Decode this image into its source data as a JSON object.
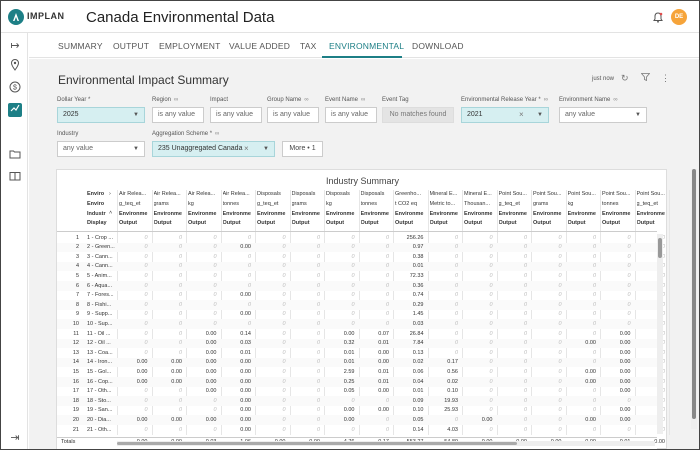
{
  "brand": {
    "name": "IMPLAN"
  },
  "app": {
    "title": "Canada Environmental Data"
  },
  "user": {
    "initials": "DE"
  },
  "tabs": [
    "SUMMARY",
    "OUTPUT",
    "EMPLOYMENT",
    "VALUE ADDED",
    "TAX",
    "ENVIRONMENTAL",
    "DOWNLOAD"
  ],
  "active_tab": "ENVIRONMENTAL",
  "page": {
    "title": "Environmental Impact Summary",
    "updated": "just now"
  },
  "filters": {
    "dollar_year": {
      "label": "Dollar Year *",
      "value": "2025"
    },
    "region": {
      "label": "Region",
      "value": "is any value"
    },
    "impact": {
      "label": "Impact",
      "value": "is any value"
    },
    "group_name": {
      "label": "Group Name",
      "value": "is any value"
    },
    "event_name": {
      "label": "Event Name",
      "value": "is any value"
    },
    "event_tag": {
      "label": "Event Tag",
      "value": "No matches found"
    },
    "release_year": {
      "label": "Environmental Release Year *",
      "value": "2021"
    },
    "env_name": {
      "label": "Environment Name",
      "value": "any value"
    },
    "industry": {
      "label": "Industry",
      "value": "any value"
    },
    "aggregation": {
      "label": "Aggregation Scheme *",
      "value": "235 Unaggregated Canada"
    },
    "more": "More • 1"
  },
  "table": {
    "title": "Industry Summary",
    "left_headers": [
      "Enviro",
      "Enviro",
      "Industr",
      "Display"
    ],
    "columns": [
      {
        "h1": "Air Relea...",
        "h2": "g_teq_et",
        "h3": "Environme",
        "h4": "Output"
      },
      {
        "h1": "Air Relea...",
        "h2": "grams",
        "h3": "Environme",
        "h4": "Output"
      },
      {
        "h1": "Air Relea...",
        "h2": "kg",
        "h3": "Environme",
        "h4": "Output"
      },
      {
        "h1": "Air Relea...",
        "h2": "tonnes",
        "h3": "Environme",
        "h4": "Output"
      },
      {
        "h1": "Disposals",
        "h2": "g_teq_et",
        "h3": "Environme",
        "h4": "Output"
      },
      {
        "h1": "Disposals",
        "h2": "grams",
        "h3": "Environme",
        "h4": "Output"
      },
      {
        "h1": "Disposals",
        "h2": "kg",
        "h3": "Environme",
        "h4": "Output"
      },
      {
        "h1": "Disposals",
        "h2": "tonnes",
        "h3": "Environme",
        "h4": "Output"
      },
      {
        "h1": "Greenho...",
        "h2": "t CO2 eq",
        "h3": "Environme",
        "h4": "Output"
      },
      {
        "h1": "Mineral E...",
        "h2": "Metric to...",
        "h3": "Environme",
        "h4": "Output"
      },
      {
        "h1": "Mineral E...",
        "h2": "Thousan...",
        "h3": "Environme",
        "h4": "Output"
      },
      {
        "h1": "Point Sou...",
        "h2": "g_teq_et",
        "h3": "Environme",
        "h4": "Output"
      },
      {
        "h1": "Point Sou...",
        "h2": "grams",
        "h3": "Environme",
        "h4": "Output"
      },
      {
        "h1": "Point Sou...",
        "h2": "kg",
        "h3": "Environme",
        "h4": "Output"
      },
      {
        "h1": "Point Sou...",
        "h2": "tonnes",
        "h3": "Environme",
        "h4": "Output"
      },
      {
        "h1": "Point Sou...",
        "h2": "g_teq_et",
        "h3": "Environme",
        "h4": "Output"
      }
    ],
    "rows": [
      {
        "n": "1",
        "label": "1 - Crop ...",
        "v": [
          "0",
          "0",
          "0",
          "0",
          "0",
          "0",
          "0",
          "0",
          "256.26",
          "0",
          "0",
          "0",
          "0",
          "0",
          "0",
          "0"
        ]
      },
      {
        "n": "2",
        "label": "2 - Green...",
        "v": [
          "0",
          "0",
          "0",
          "0.00",
          "0",
          "0",
          "0",
          "0",
          "0.97",
          "0",
          "0",
          "0",
          "0",
          "0",
          "0",
          "0"
        ]
      },
      {
        "n": "3",
        "label": "3 - Cann...",
        "v": [
          "0",
          "0",
          "0",
          "0",
          "0",
          "0",
          "0",
          "0",
          "0.38",
          "0",
          "0",
          "0",
          "0",
          "0",
          "0",
          "0"
        ]
      },
      {
        "n": "4",
        "label": "4 - Cann...",
        "v": [
          "0",
          "0",
          "0",
          "0",
          "0",
          "0",
          "0",
          "0",
          "0.01",
          "0",
          "0",
          "0",
          "0",
          "0",
          "0",
          "0"
        ]
      },
      {
        "n": "5",
        "label": "5 - Anim...",
        "v": [
          "0",
          "0",
          "0",
          "0",
          "0",
          "0",
          "0",
          "0",
          "72.33",
          "0",
          "0",
          "0",
          "0",
          "0",
          "0",
          "0"
        ]
      },
      {
        "n": "6",
        "label": "6 - Aqua...",
        "v": [
          "0",
          "0",
          "0",
          "0",
          "0",
          "0",
          "0",
          "0",
          "0.36",
          "0",
          "0",
          "0",
          "0",
          "0",
          "0",
          "0"
        ]
      },
      {
        "n": "7",
        "label": "7 - Fores...",
        "v": [
          "0",
          "0",
          "0",
          "0.00",
          "0",
          "0",
          "0",
          "0",
          "0.74",
          "0",
          "0",
          "0",
          "0",
          "0",
          "0",
          "0"
        ]
      },
      {
        "n": "8",
        "label": "8 - Fishi...",
        "v": [
          "0",
          "0",
          "0",
          "0",
          "0",
          "0",
          "0",
          "0",
          "0.29",
          "0",
          "0",
          "0",
          "0",
          "0",
          "0",
          "0"
        ]
      },
      {
        "n": "9",
        "label": "9 - Supp...",
        "v": [
          "0",
          "0",
          "0",
          "0.00",
          "0",
          "0",
          "0",
          "0",
          "1.45",
          "0",
          "0",
          "0",
          "0",
          "0",
          "0",
          "0"
        ]
      },
      {
        "n": "10",
        "label": "10 - Sup...",
        "v": [
          "0",
          "0",
          "0",
          "0",
          "0",
          "0",
          "0",
          "0",
          "0.03",
          "0",
          "0",
          "0",
          "0",
          "0",
          "0",
          "0"
        ]
      },
      {
        "n": "11",
        "label": "11 - Oil ...",
        "v": [
          "0",
          "0",
          "0.00",
          "0.14",
          "0",
          "0",
          "0.00",
          "0.07",
          "26.84",
          "0",
          "0",
          "0",
          "0",
          "0",
          "0.00",
          "0"
        ]
      },
      {
        "n": "12",
        "label": "12 - Oil ...",
        "v": [
          "0",
          "0",
          "0.00",
          "0.03",
          "0",
          "0",
          "0.32",
          "0.01",
          "7.84",
          "0",
          "0",
          "0",
          "0",
          "0.00",
          "0.00",
          "0"
        ]
      },
      {
        "n": "13",
        "label": "13 - Coa...",
        "v": [
          "0",
          "0",
          "0.00",
          "0.01",
          "0",
          "0",
          "0.01",
          "0.00",
          "0.13",
          "0",
          "0",
          "0",
          "0",
          "0",
          "0.00",
          "0"
        ]
      },
      {
        "n": "14",
        "label": "14 - Iron...",
        "v": [
          "0.00",
          "0.00",
          "0.00",
          "0.00",
          "0",
          "0",
          "0.01",
          "0.00",
          "0.02",
          "0.17",
          "0",
          "0",
          "0",
          "0",
          "0.00",
          "0"
        ]
      },
      {
        "n": "15",
        "label": "15 - Gol...",
        "v": [
          "0.00",
          "0.00",
          "0.00",
          "0.00",
          "0",
          "0",
          "2.59",
          "0.01",
          "0.06",
          "0.56",
          "0",
          "0",
          "0",
          "0.00",
          "0.00",
          "0"
        ]
      },
      {
        "n": "16",
        "label": "16 - Cop...",
        "v": [
          "0.00",
          "0.00",
          "0.00",
          "0.00",
          "0",
          "0",
          "0.25",
          "0.01",
          "0.04",
          "0.02",
          "0",
          "0",
          "0",
          "0.00",
          "0.00",
          "0"
        ]
      },
      {
        "n": "17",
        "label": "17 - Oth...",
        "v": [
          "0",
          "0",
          "0.00",
          "0.00",
          "0",
          "0",
          "0.05",
          "0.00",
          "0.01",
          "0.10",
          "0",
          "0",
          "0",
          "0",
          "0.00",
          "0"
        ]
      },
      {
        "n": "18",
        "label": "18 - Sto...",
        "v": [
          "0",
          "0",
          "0",
          "0.00",
          "0",
          "0",
          "0",
          "0",
          "0.09",
          "19.93",
          "0",
          "0",
          "0",
          "0",
          "0",
          "0"
        ]
      },
      {
        "n": "19",
        "label": "19 - San...",
        "v": [
          "0",
          "0",
          "0",
          "0.00",
          "0",
          "0",
          "0.00",
          "0.00",
          "0.10",
          "25.93",
          "0",
          "0",
          "0",
          "0",
          "0.00",
          "0"
        ]
      },
      {
        "n": "20",
        "label": "20 - Dia...",
        "v": [
          "0.00",
          "0.00",
          "0.00",
          "0.00",
          "0",
          "0",
          "0.00",
          "0",
          "0.05",
          "0",
          "0.00",
          "0",
          "0",
          "0.00",
          "0.00",
          "0"
        ]
      },
      {
        "n": "21",
        "label": "21 - Oth...",
        "v": [
          "0",
          "0",
          "0",
          "0.00",
          "0",
          "0",
          "0",
          "0",
          "0.14",
          "4.03",
          "0",
          "0",
          "0",
          "0",
          "0",
          "0"
        ]
      }
    ],
    "totals_label": "Totals",
    "totals": [
      "0.00",
      "0.00",
      "0.03",
      "1.06",
      "0.00",
      "0.00",
      "4.76",
      "0.17",
      "553.27",
      "54.89",
      "0.00",
      "0.00",
      "0.00",
      "0.00",
      "0.01",
      "0.00"
    ]
  }
}
